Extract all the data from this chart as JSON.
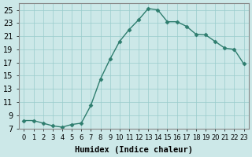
{
  "x": [
    0,
    1,
    2,
    3,
    4,
    5,
    6,
    7,
    8,
    9,
    10,
    11,
    12,
    13,
    14,
    15,
    16,
    17,
    18,
    19,
    20,
    21,
    22,
    23
  ],
  "y": [
    8.2,
    8.2,
    7.8,
    7.4,
    7.2,
    7.6,
    7.8,
    10.5,
    14.5,
    17.5,
    20.2,
    22.0,
    23.5,
    25.2,
    25.0,
    23.2,
    23.2,
    22.5,
    21.3,
    21.2,
    20.2,
    19.2,
    19.0,
    16.8
  ],
  "line_color": "#2e7d6e",
  "marker": "D",
  "marker_size": 2.5,
  "bg_color": "#cce8e8",
  "grid_color": "#99cccc",
  "xlabel": "Humidex (Indice chaleur)",
  "xlim": [
    -0.5,
    23.5
  ],
  "ylim": [
    7,
    26
  ],
  "yticks": [
    7,
    9,
    11,
    13,
    15,
    17,
    19,
    21,
    23,
    25
  ],
  "fontsize_axis": 7,
  "fontsize_xlabel": 7.5
}
